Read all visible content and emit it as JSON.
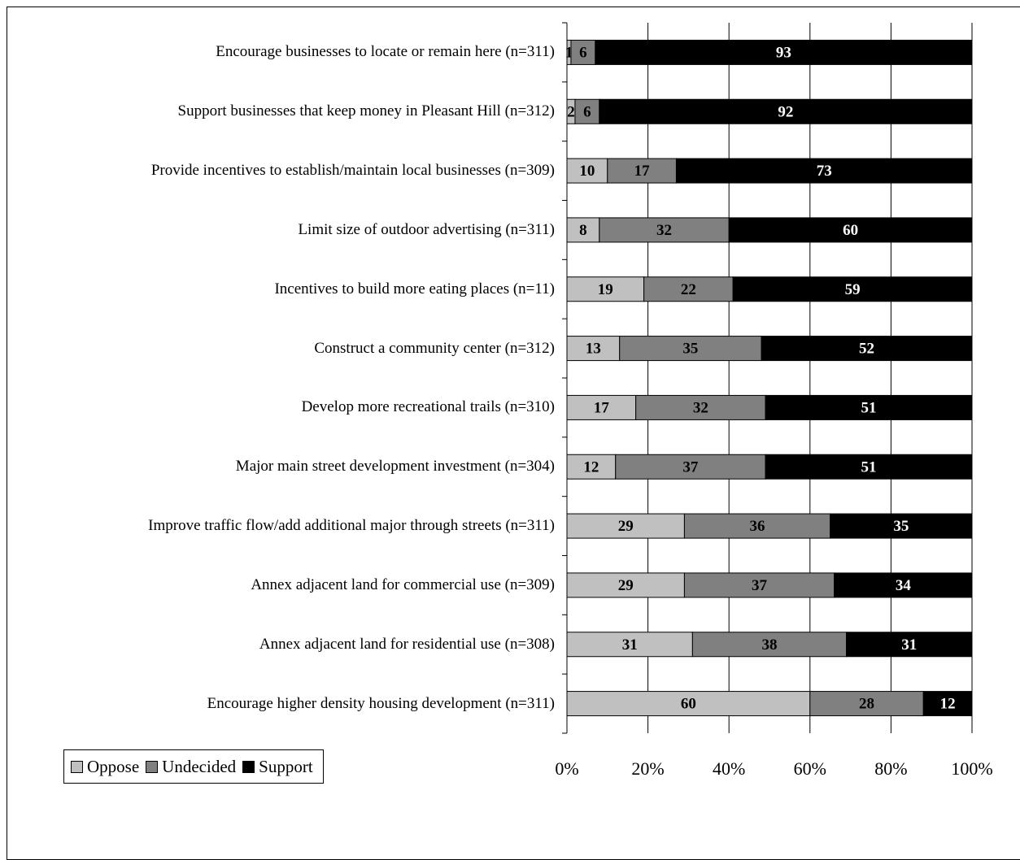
{
  "chart_data": {
    "type": "bar",
    "orientation": "horizontal",
    "stacked": true,
    "categories": [
      "Encourage businesses to locate or remain here (n=311)",
      "Support businesses that keep money in Pleasant Hill (n=312)",
      "Provide incentives to establish/maintain local businesses (n=309)",
      "Limit size of outdoor advertising (n=311)",
      "Incentives to build more eating places (n=11)",
      "Construct a community center (n=312)",
      "Develop more recreational trails (n=310)",
      "Major main street development investment (n=304)",
      "Improve traffic flow/add additional major through streets (n=311)",
      "Annex adjacent land for commercial use (n=309)",
      "Annex adjacent land for residential use (n=308)",
      "Encourage higher density housing development (n=311)"
    ],
    "series": [
      {
        "name": "Oppose",
        "color": "#c0c0c0",
        "label_color": "#000000",
        "values": [
          1,
          2,
          10,
          8,
          19,
          13,
          17,
          12,
          29,
          29,
          31,
          60
        ]
      },
      {
        "name": "Undecided",
        "color": "#808080",
        "label_color": "#000000",
        "values": [
          6,
          6,
          17,
          32,
          22,
          35,
          32,
          37,
          36,
          37,
          38,
          28
        ]
      },
      {
        "name": "Support",
        "color": "#000000",
        "label_color": "#ffffff",
        "values": [
          93,
          92,
          73,
          60,
          59,
          52,
          51,
          51,
          35,
          34,
          31,
          12
        ]
      }
    ],
    "xlim": [
      0,
      100
    ],
    "xticks": [
      "0%",
      "20%",
      "40%",
      "60%",
      "80%",
      "100%"
    ],
    "grid": true,
    "legend": "bottom-left"
  }
}
